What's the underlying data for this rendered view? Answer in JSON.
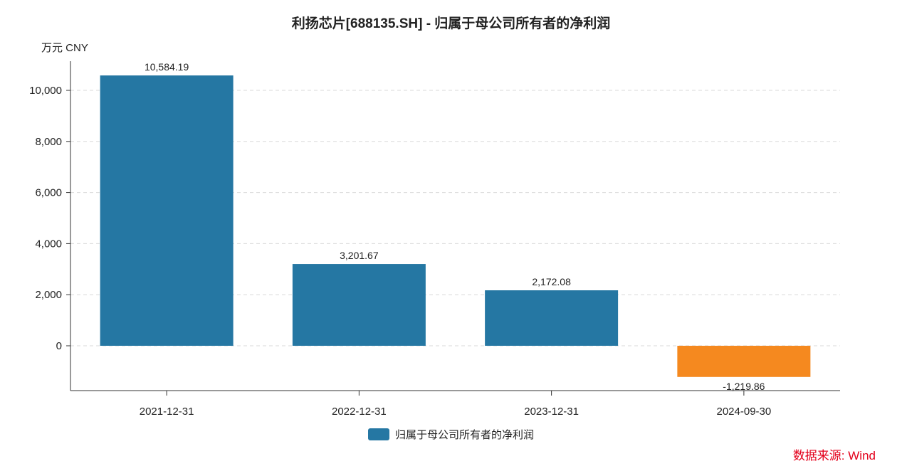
{
  "title": "利扬芯片[688135.SH] - 归属于母公司所有者的净利润",
  "unit_label": "万元  CNY",
  "source": "数据来源: Wind",
  "chart_data": {
    "type": "bar",
    "title": "利扬芯片[688135.SH] - 归属于母公司所有者的净利润",
    "ylabel": "万元  CNY",
    "xlabel": "",
    "categories": [
      "2021-12-31",
      "2022-12-31",
      "2023-12-31",
      "2024-09-30"
    ],
    "series": [
      {
        "name": "归属于母公司所有者的净利润",
        "values": [
          10584.19,
          3201.67,
          2172.08,
          -1219.86
        ],
        "value_labels": [
          "10,584.19",
          "3,201.67",
          "2,172.08",
          "-1,219.86"
        ],
        "color": "#2577a3",
        "negative_color": "#f5891f"
      }
    ],
    "yticks": [
      0,
      2000,
      4000,
      6000,
      8000,
      10000
    ],
    "ytick_labels": [
      "0",
      "2,000",
      "4,000",
      "6,000",
      "8,000",
      "10,000"
    ],
    "ylim": [
      -1750,
      11200
    ],
    "grid": true,
    "legend_position": "bottom"
  }
}
